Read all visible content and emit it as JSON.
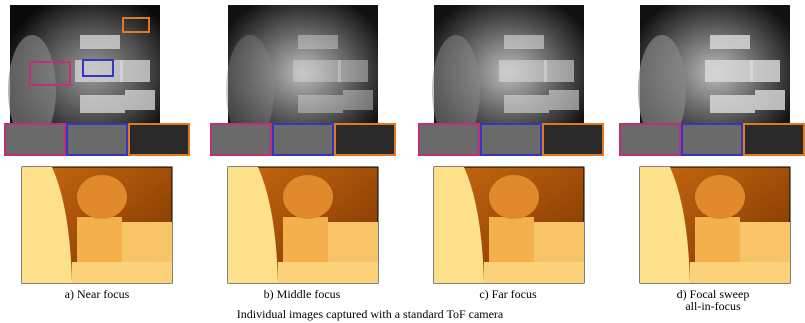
{
  "panels": [
    {
      "caption_lines": [
        "a) Near focus"
      ]
    },
    {
      "caption_lines": [
        "b) Middle focus"
      ]
    },
    {
      "caption_lines": [
        "c) Far focus"
      ]
    },
    {
      "caption_lines": [
        "d) Focal sweep",
        "all-in-focus"
      ]
    }
  ],
  "group_caption": "Individual images captured with a standard ToF camera"
}
